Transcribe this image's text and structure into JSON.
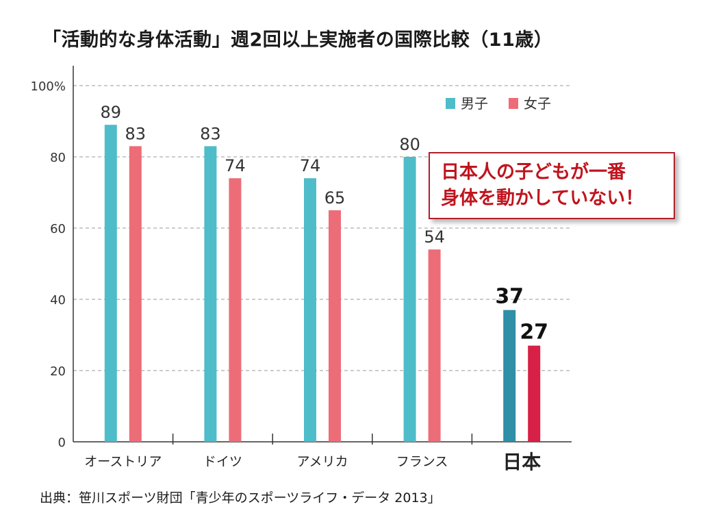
{
  "title": "「活動的な身体活動」週2回以上実施者の国際比較（11歳）",
  "source": "出典：笹川スポーツ財団「青少年のスポーツライフ・データ 2013」",
  "callout": {
    "line1": "日本人の子どもが一番",
    "line2": "身体を動かしていない！"
  },
  "colors": {
    "boys": "#4fbcc9",
    "girls": "#ec6d78",
    "boys_japan": "#2e8fa6",
    "girls_japan": "#d81f45",
    "callout": "#c0141e"
  },
  "chart_data": {
    "type": "bar",
    "categories": [
      "オーストリア",
      "ドイツ",
      "アメリカ",
      "フランス",
      "日本"
    ],
    "series": [
      {
        "name": "男子",
        "values": [
          89,
          83,
          74,
          80,
          37
        ]
      },
      {
        "name": "女子",
        "values": [
          83,
          74,
          65,
          54,
          27
        ]
      }
    ],
    "ylim": [
      0,
      100
    ],
    "yticks": [
      "0",
      "20",
      "40",
      "60",
      "80",
      "100%"
    ],
    "grid": true,
    "legend": "top-right",
    "highlight_category": "日本"
  }
}
